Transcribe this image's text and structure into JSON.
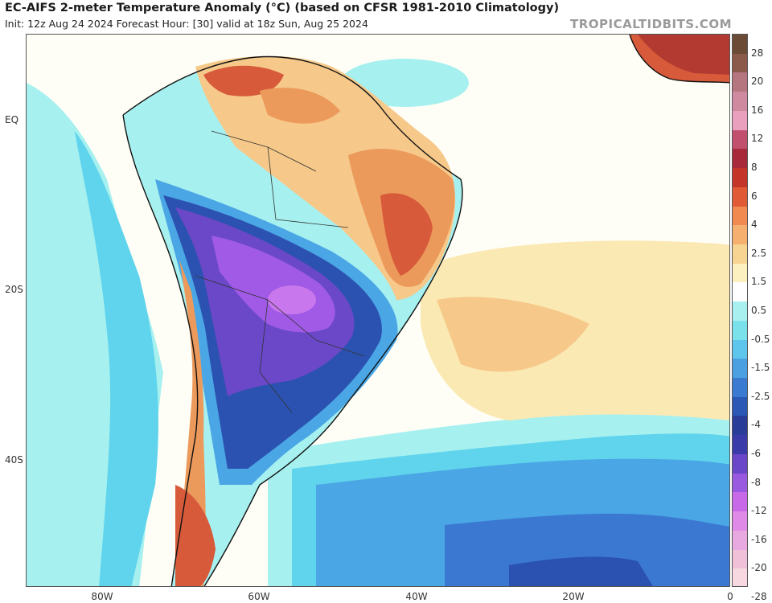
{
  "header": {
    "title": "EC-AIFS 2-meter Temperature Anomaly (°C) (based on CFSR 1981-2010 Climatology)",
    "subtitle": "Init: 12z Aug 24 2024   Forecast Hour: [30]   valid at 18z Sun, Aug 25 2024",
    "credit": "TROPICALTIDBITS.COM"
  },
  "axes": {
    "lat_labels": [
      "EQ",
      "20S",
      "40S"
    ],
    "lon_labels": [
      "80W",
      "60W",
      "40W",
      "20W",
      "0"
    ]
  },
  "colorbar": {
    "labels": [
      "28",
      "20",
      "16",
      "12",
      "8",
      "6",
      "4",
      "2.5",
      "1.5",
      "0.5",
      "-0.5",
      "-1.5",
      "-2.5",
      "-4",
      "-6",
      "-8",
      "-12",
      "-16",
      "-20",
      "-28"
    ],
    "colors": [
      "#6b4a36",
      "#8c5a4a",
      "#b57680",
      "#d08aa0",
      "#e8a0bc",
      "#c0506e",
      "#a82a3a",
      "#c53428",
      "#e05a35",
      "#f08a50",
      "#f5b070",
      "#f8d493",
      "#fcefc0",
      "#ffffff",
      "#a8f0f0",
      "#7ae0ea",
      "#5ec6ec",
      "#4aa0e0",
      "#3a7ad0",
      "#2a58b4",
      "#283c98",
      "#3a3aa8",
      "#6a46c8",
      "#9a5ae0",
      "#c86ae8",
      "#e08ae8",
      "#e8a8e0",
      "#f0c0d8",
      "#f8d8e0"
    ]
  },
  "map_palette": {
    "ocean_neutral": "#fffef6",
    "warm_1": "#fbe9b4",
    "warm_2": "#f6c98a",
    "warm_3": "#ec9a5c",
    "warm_4": "#d75a3a",
    "warm_5": "#b23a30",
    "cool_1": "#a6f0f0",
    "cool_2": "#5fd4ec",
    "cool_3": "#4aa6e4",
    "cool_4": "#3a78d2",
    "cool_5": "#2b52b0",
    "cold_1": "#3c3ca4",
    "cold_2": "#6a48c8",
    "cold_3": "#a05ae6",
    "cold_4": "#c878ec",
    "coast": "#111111"
  }
}
